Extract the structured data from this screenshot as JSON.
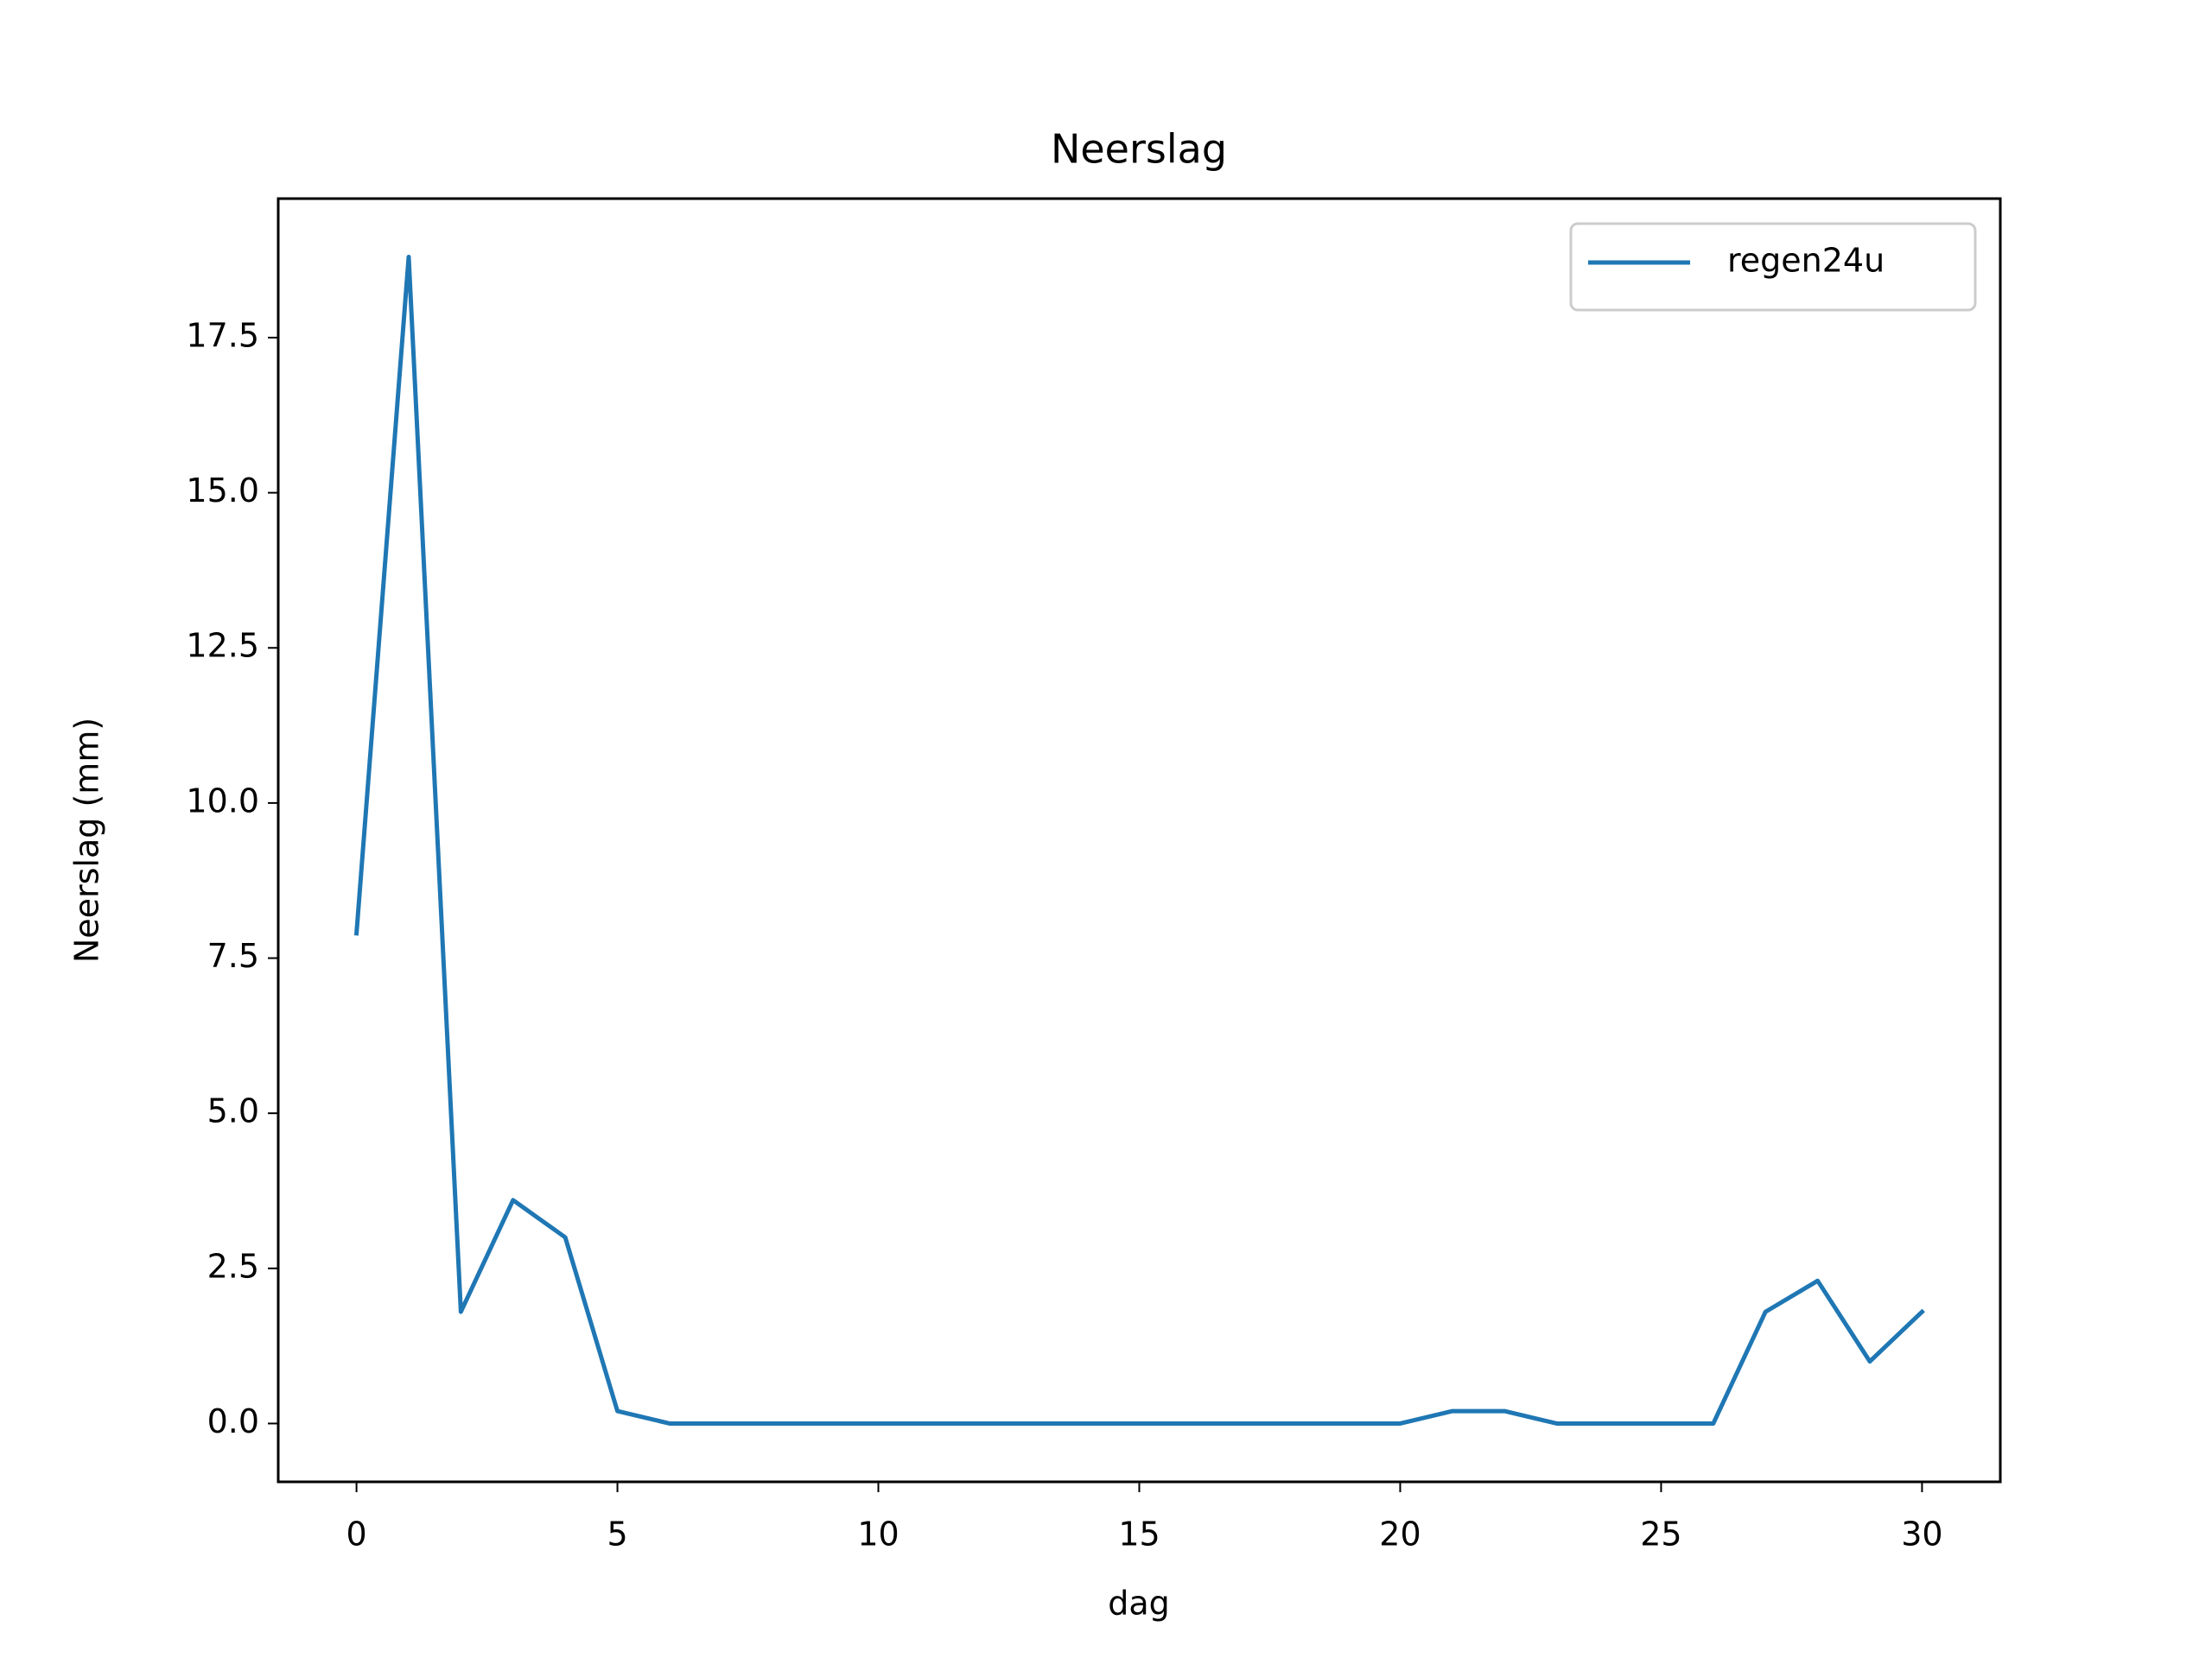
{
  "chart_data": {
    "type": "line",
    "title": "Neerslag",
    "xlabel": "dag",
    "ylabel": "Neerslag (mm)",
    "x": [
      0,
      1,
      2,
      3,
      4,
      5,
      6,
      7,
      8,
      9,
      10,
      11,
      12,
      13,
      14,
      15,
      16,
      17,
      18,
      19,
      20,
      21,
      22,
      23,
      24,
      25,
      26,
      27,
      28,
      29,
      30
    ],
    "series": [
      {
        "name": "regen24u",
        "color": "#1f77b4",
        "values": [
          7.9,
          18.8,
          1.8,
          3.6,
          3.0,
          0.2,
          0,
          0,
          0,
          0,
          0,
          0,
          0,
          0,
          0,
          0,
          0,
          0,
          0,
          0,
          0,
          0.2,
          0.2,
          0,
          0,
          0,
          0,
          1.8,
          2.3,
          1.0,
          1.8
        ]
      }
    ],
    "xlim": [
      -1.5,
      31.5
    ],
    "xticks": [
      0,
      5,
      10,
      15,
      20,
      25,
      30
    ],
    "ylim": [
      -0.94,
      19.74
    ],
    "yticks": [
      {
        "value": 0,
        "label": "0.0"
      },
      2.5,
      {
        "value": 5,
        "label": "5.0"
      },
      7.5,
      {
        "value": 10,
        "label": "10.0"
      },
      12.5,
      {
        "value": 15,
        "label": "15.0"
      },
      17.5
    ],
    "legend": "upper right",
    "grid": false
  }
}
